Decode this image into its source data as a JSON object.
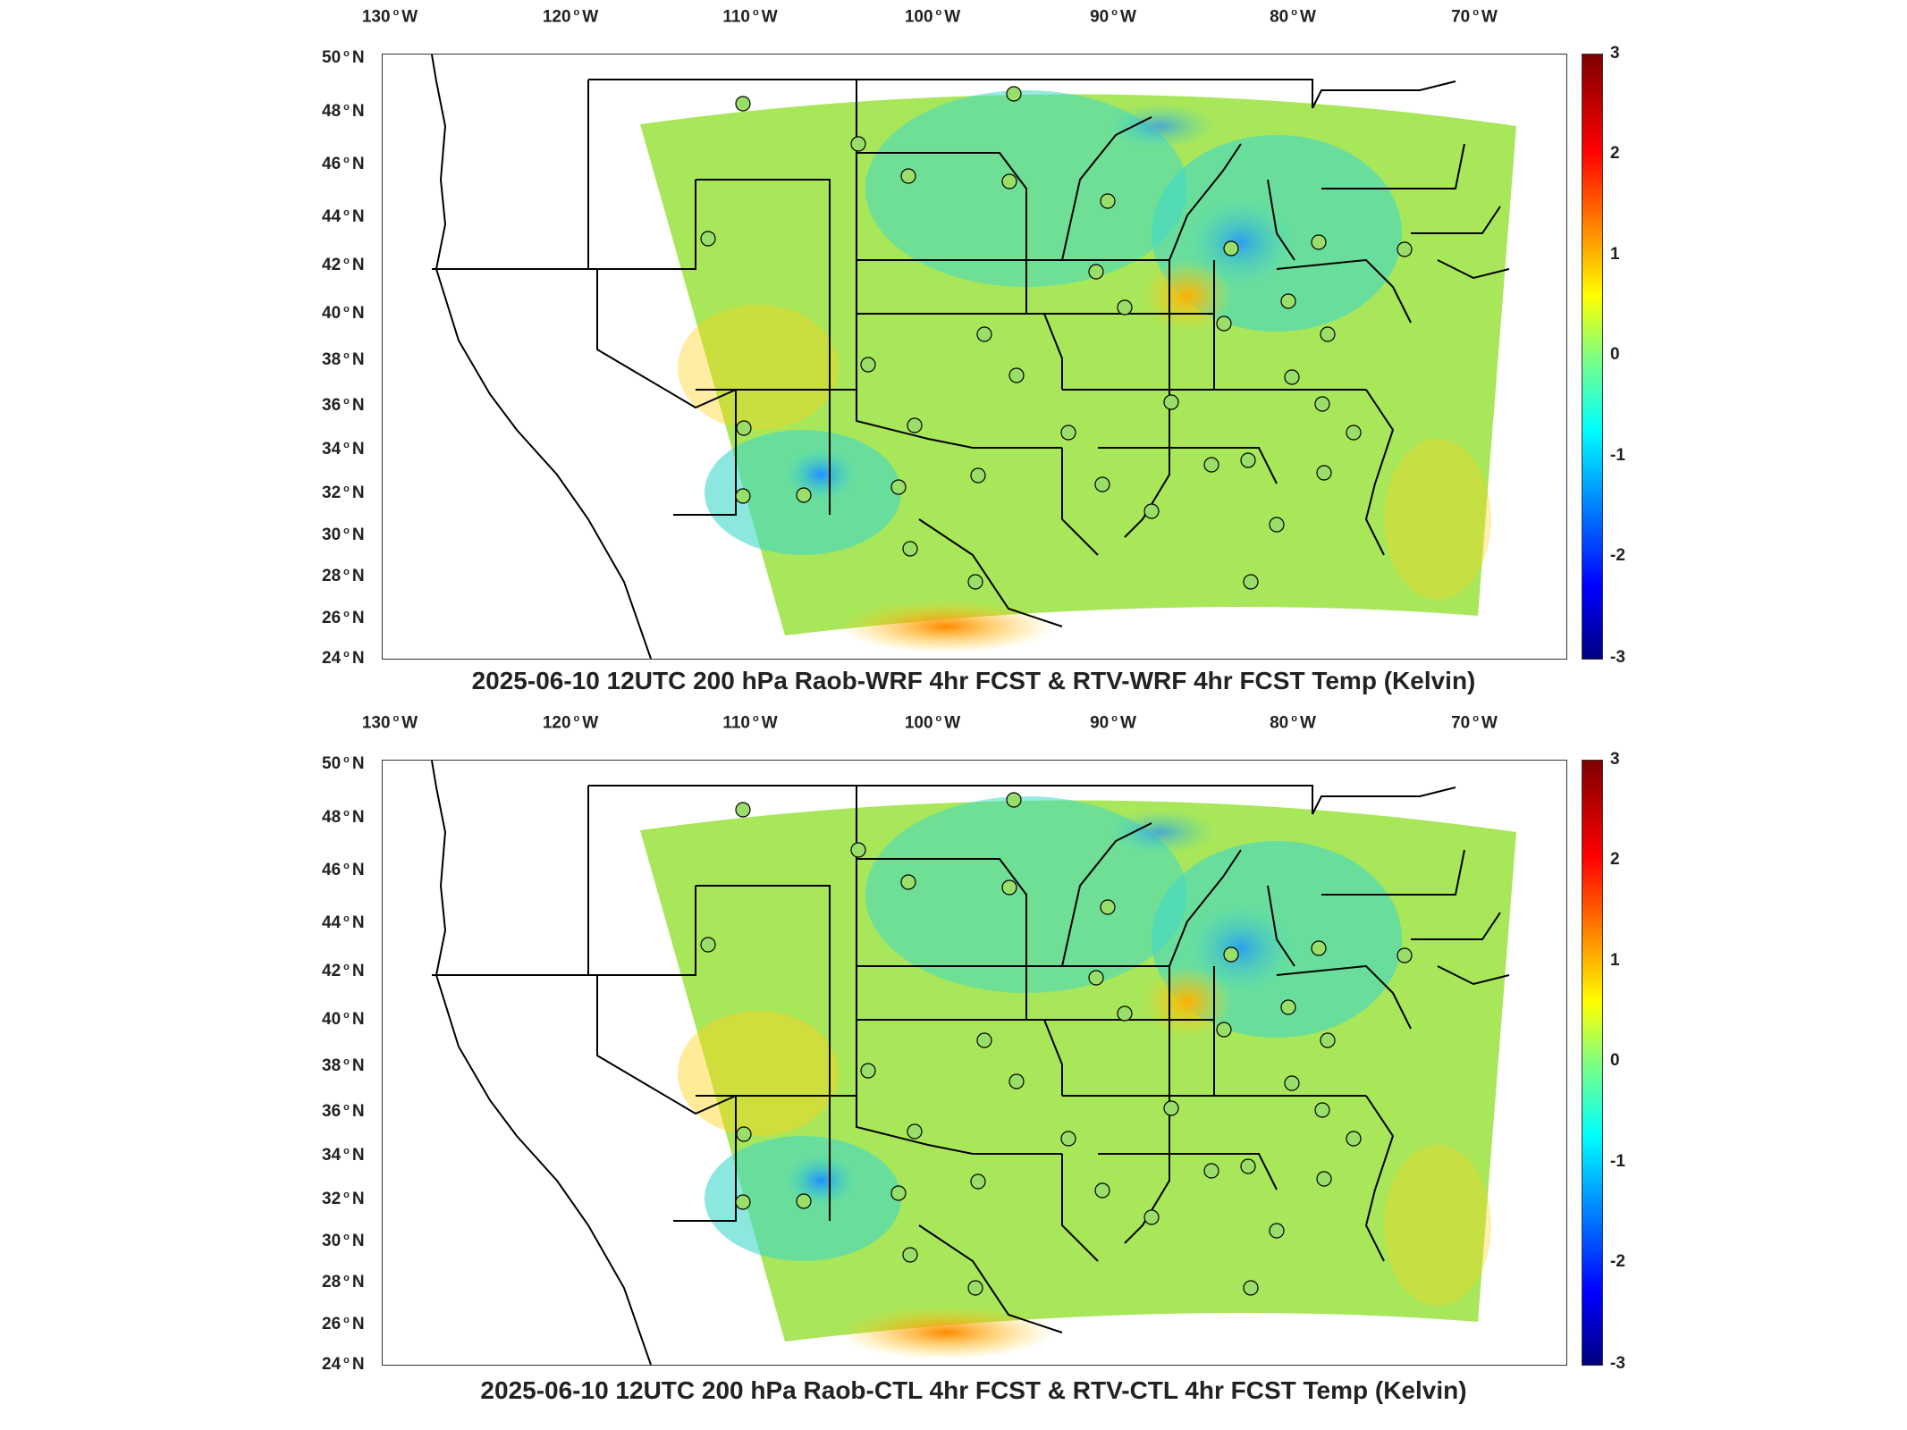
{
  "lon_ticks": [
    "130",
    "120",
    "110",
    "100",
    "90",
    "80",
    "70"
  ],
  "lon_suffix": "W",
  "lat_ticks": [
    "50",
    "48",
    "46",
    "44",
    "42",
    "40",
    "38",
    "36",
    "34",
    "32",
    "30",
    "28",
    "26",
    "24"
  ],
  "lat_suffix": "N",
  "colorbar": {
    "ticks": [
      "3",
      "2",
      "1",
      "0",
      "-1",
      "-2",
      "-3"
    ],
    "colormap": "jet",
    "range": [
      -3,
      3
    ]
  },
  "panels": [
    {
      "caption": "2025-06-10 12UTC 200 hPa Raob-WRF 4hr FCST & RTV-WRF 4hr FCST Temp (Kelvin)"
    },
    {
      "caption": "2025-06-10 12UTC 200 hPa Raob-CTL 4hr FCST & RTV-CTL 4hr FCST Temp (Kelvin)"
    }
  ],
  "colors": {
    "field_base": "#a8e65a",
    "field_cool": "#3fd9c8",
    "field_cold": "#1f8fff",
    "field_warm": "#ffd21a",
    "field_hot": "#ff8a00",
    "station_fill": "#9ade6a",
    "boundary": "#000000"
  }
}
